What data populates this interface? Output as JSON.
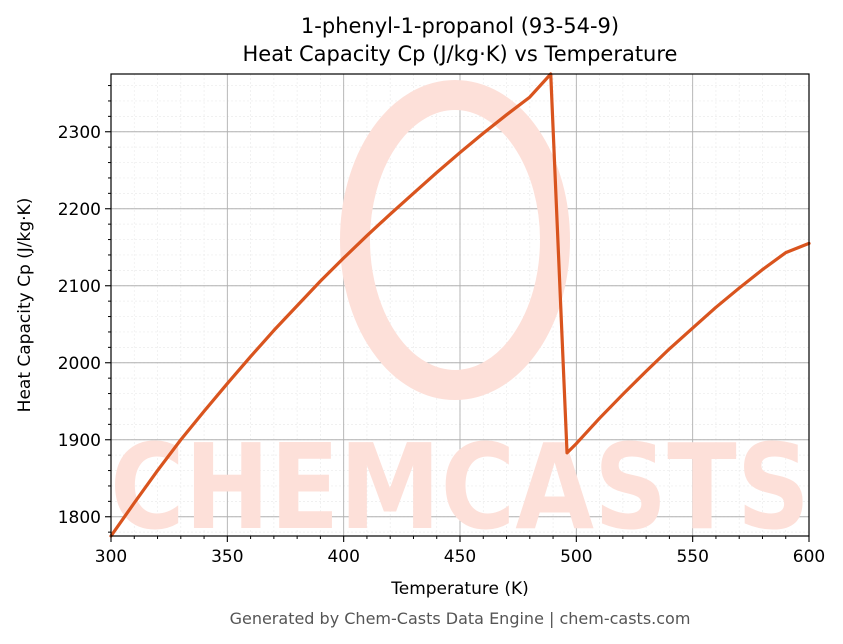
{
  "chart_data": {
    "type": "line",
    "title_line1": "1-phenyl-1-propanol (93-54-9)",
    "title_line2": "Heat Capacity Cp (J/kg·K) vs Temperature",
    "xlabel": "Temperature (K)",
    "ylabel": "Heat Capacity Cp (J/kg·K)",
    "xlim": [
      300,
      600
    ],
    "ylim": [
      1775,
      2375
    ],
    "x_ticks": [
      300,
      350,
      400,
      450,
      500,
      550,
      600
    ],
    "y_ticks": [
      1800,
      1900,
      2000,
      2100,
      2200,
      2300
    ],
    "grid": true,
    "series": [
      {
        "color": "#d9541e",
        "x": [
          300,
          310,
          320,
          330,
          340,
          350,
          360,
          370,
          380,
          390,
          400,
          410,
          420,
          430,
          440,
          450,
          460,
          470,
          480,
          489,
          496,
          500,
          510,
          520,
          530,
          540,
          550,
          560,
          570,
          580,
          590,
          600
        ],
        "y": [
          1775,
          1818,
          1860,
          1900,
          1937,
          1973,
          2008,
          2042,
          2074,
          2106,
          2136,
          2165,
          2193,
          2220,
          2247,
          2273,
          2298,
          2322,
          2345,
          2375,
          1883,
          1895,
          1928,
          1959,
          1989,
          2018,
          2045,
          2072,
          2097,
          2121,
          2143,
          2155
        ]
      }
    ]
  },
  "watermark": {
    "text": "CHEMCASTS",
    "color": "#fde0d9"
  },
  "footer": {
    "text": "Generated by Chem-Casts Data Engine | chem-casts.com"
  }
}
